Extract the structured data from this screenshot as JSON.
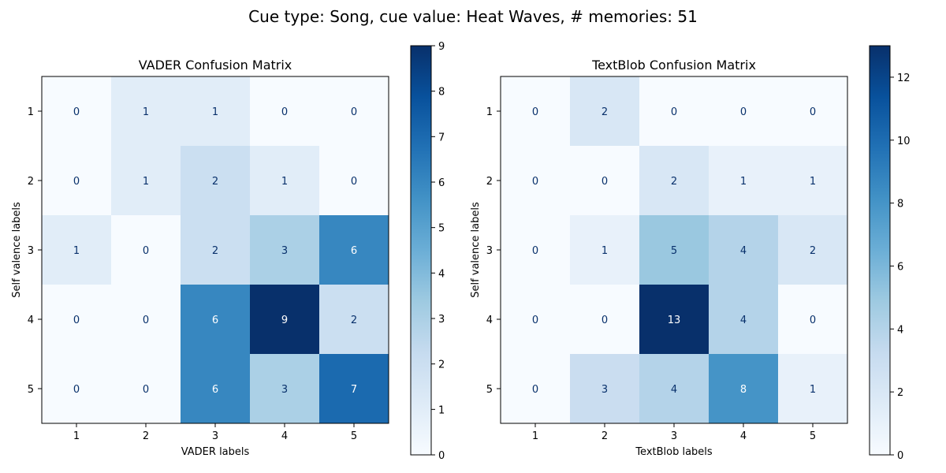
{
  "figure": {
    "suptitle": "Cue type: Song, cue value: Heat Waves, # memories: 51"
  },
  "chart_data": [
    {
      "type": "heatmap",
      "title": "VADER Confusion Matrix",
      "xlabel": "VADER labels",
      "ylabel": "Self valence labels",
      "x_ticks": [
        "1",
        "2",
        "3",
        "4",
        "5"
      ],
      "y_ticks": [
        "1",
        "2",
        "3",
        "4",
        "5"
      ],
      "matrix": [
        [
          0,
          1,
          1,
          0,
          0
        ],
        [
          0,
          1,
          2,
          1,
          0
        ],
        [
          1,
          0,
          2,
          3,
          6
        ],
        [
          0,
          0,
          6,
          9,
          2
        ],
        [
          0,
          0,
          6,
          3,
          7
        ]
      ],
      "colormap": "Blues",
      "colorbar": {
        "min": 0,
        "max": 9,
        "ticks": [
          "0",
          "1",
          "2",
          "3",
          "4",
          "5",
          "6",
          "7",
          "8",
          "9"
        ]
      }
    },
    {
      "type": "heatmap",
      "title": "TextBlob Confusion Matrix",
      "xlabel": "TextBlob labels",
      "ylabel": "Self valence labels",
      "x_ticks": [
        "1",
        "2",
        "3",
        "4",
        "5"
      ],
      "y_ticks": [
        "1",
        "2",
        "3",
        "4",
        "5"
      ],
      "matrix": [
        [
          0,
          2,
          0,
          0,
          0
        ],
        [
          0,
          0,
          2,
          1,
          1
        ],
        [
          0,
          1,
          5,
          4,
          2
        ],
        [
          0,
          0,
          13,
          4,
          0
        ],
        [
          0,
          3,
          4,
          8,
          1
        ]
      ],
      "colormap": "Blues",
      "colorbar": {
        "min": 0,
        "max": 13,
        "ticks": [
          "0",
          "2",
          "4",
          "6",
          "8",
          "10",
          "12"
        ]
      }
    }
  ]
}
